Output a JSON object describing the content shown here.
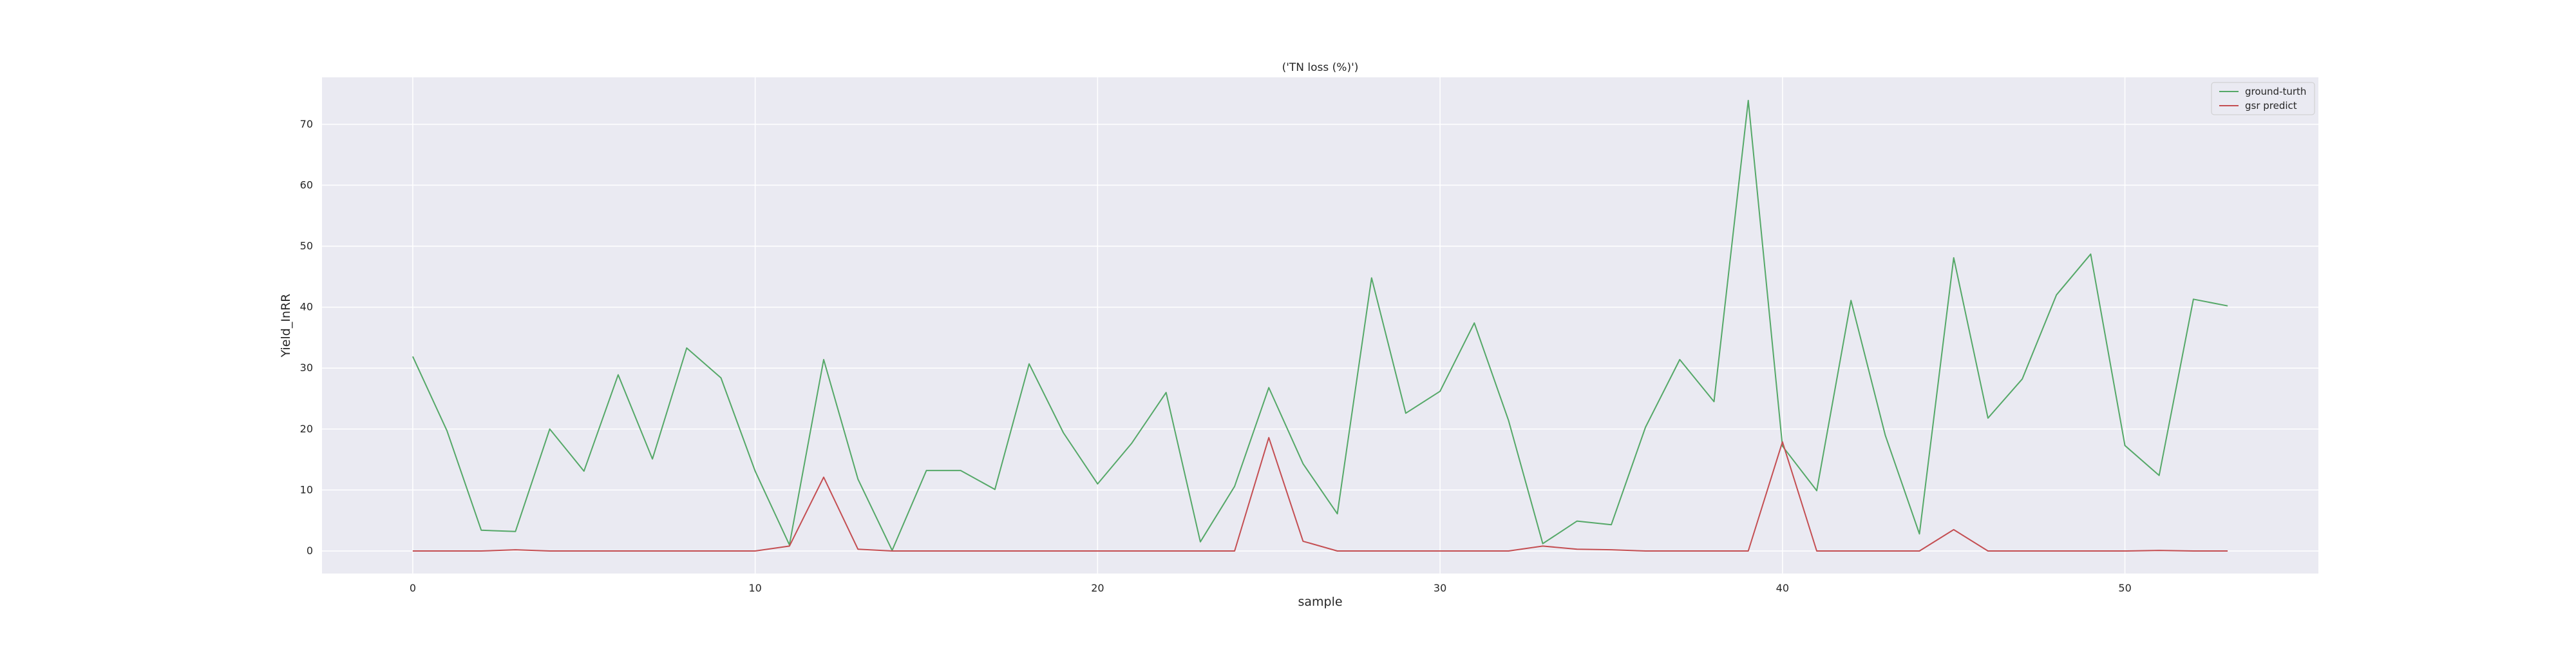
{
  "chart_data": {
    "type": "line",
    "title": "('TN loss (%)')",
    "xlabel": "sample",
    "ylabel": "Yield_InRR",
    "xlim": [
      -2.65,
      55.65
    ],
    "ylim": [
      -3.7,
      77.7
    ],
    "xticks": [
      0,
      10,
      20,
      30,
      40,
      50
    ],
    "yticks": [
      0,
      10,
      20,
      30,
      40,
      50,
      60,
      70
    ],
    "grid": true,
    "background": "#eaeaf2",
    "legend_position": "upper right",
    "x": [
      0,
      1,
      2,
      3,
      4,
      5,
      6,
      7,
      8,
      9,
      10,
      11,
      12,
      13,
      14,
      15,
      16,
      17,
      18,
      19,
      20,
      21,
      22,
      23,
      24,
      25,
      26,
      27,
      28,
      29,
      30,
      31,
      32,
      33,
      34,
      35,
      36,
      37,
      38,
      39,
      40,
      41,
      42,
      43,
      44,
      45,
      46,
      47,
      48,
      49,
      50,
      51,
      52,
      53
    ],
    "series": [
      {
        "name": "ground-turth",
        "color": "#55a868",
        "values": [
          31.9,
          19.7,
          3.4,
          3.2,
          20.0,
          13.1,
          28.9,
          15.1,
          33.3,
          28.4,
          13.1,
          1.0,
          31.4,
          11.8,
          0.1,
          13.2,
          13.2,
          10.1,
          30.7,
          19.4,
          11.0,
          17.7,
          26.0,
          1.5,
          10.6,
          26.8,
          14.3,
          6.1,
          44.8,
          22.6,
          26.2,
          37.4,
          21.4,
          1.2,
          4.9,
          4.3,
          20.3,
          31.4,
          24.5,
          73.9,
          17.2,
          9.9,
          41.1,
          19.0,
          2.8,
          48.1,
          21.8,
          28.2,
          42.0,
          48.7,
          17.3,
          12.4,
          41.3,
          40.2
        ]
      },
      {
        "name": "gsr predict",
        "color": "#c44e52",
        "values": [
          0.0,
          0.0,
          0.0,
          0.2,
          0.0,
          0.0,
          0.0,
          0.0,
          0.0,
          0.0,
          0.0,
          0.8,
          12.1,
          0.3,
          0.0,
          0.0,
          0.0,
          0.0,
          0.0,
          0.0,
          0.0,
          0.0,
          0.0,
          0.0,
          0.0,
          18.6,
          1.6,
          0.0,
          0.0,
          0.0,
          0.0,
          0.0,
          0.0,
          0.8,
          0.3,
          0.2,
          0.0,
          0.0,
          0.0,
          0.0,
          17.9,
          0.0,
          0.0,
          0.0,
          0.0,
          3.5,
          0.0,
          0.0,
          0.0,
          0.0,
          0.0,
          0.1,
          0.0,
          0.0
        ]
      }
    ]
  }
}
